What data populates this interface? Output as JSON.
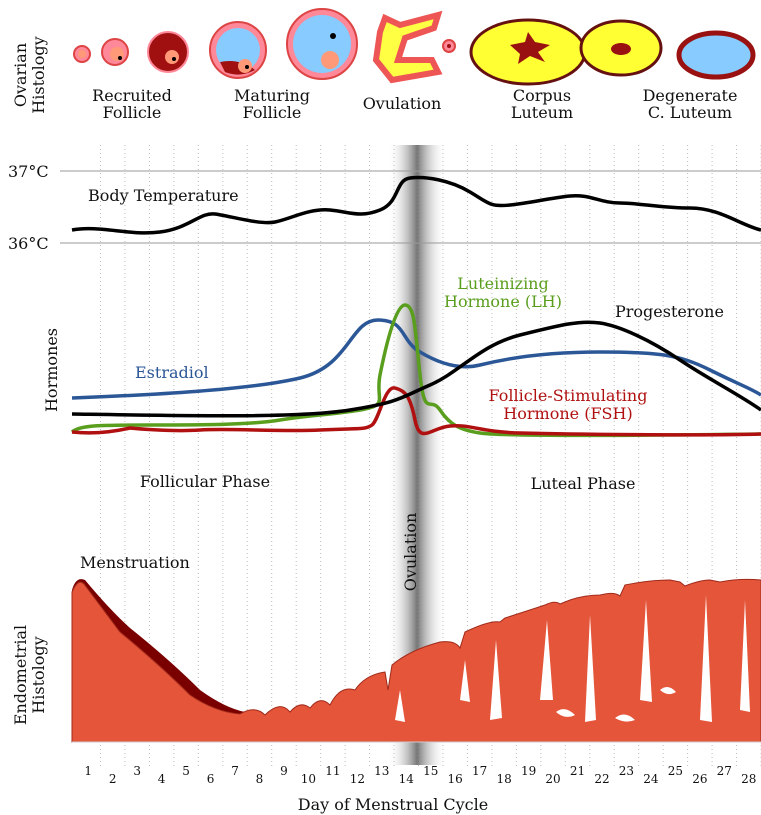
{
  "ovarian_histology": {
    "title": [
      "Ovarian",
      "Histology"
    ],
    "stages": [
      [
        "Recruited",
        "Follicle"
      ],
      [
        "Maturing",
        "Follicle"
      ],
      [
        "Ovulation"
      ],
      [
        "Corpus",
        "Luteum"
      ],
      [
        "Degenerate",
        "C. Luteum"
      ]
    ]
  },
  "temperature": {
    "ticks": [
      "37°C",
      "36°C"
    ],
    "label": "Body Temperature"
  },
  "hormones": {
    "title": "Hormones",
    "lh": [
      "Luteinizing",
      "Hormone (LH)"
    ],
    "progesterone": "Progesterone",
    "estradiol": "Estradiol",
    "fsh": [
      "Follicle-Stimulating",
      "Hormone (FSH)"
    ]
  },
  "phases": {
    "follicular": "Follicular Phase",
    "luteal": "Luteal Phase",
    "ovulation": "Ovulation"
  },
  "endometrium": {
    "title": [
      "Endometrial",
      "Histology"
    ],
    "menstruation": "Menstruation"
  },
  "x_axis": {
    "days": [
      1,
      2,
      3,
      4,
      5,
      6,
      7,
      8,
      9,
      10,
      11,
      12,
      13,
      14,
      15,
      16,
      17,
      18,
      19,
      20,
      21,
      22,
      23,
      24,
      25,
      26,
      27,
      28
    ],
    "title": "Day of Menstrual Cycle"
  }
}
